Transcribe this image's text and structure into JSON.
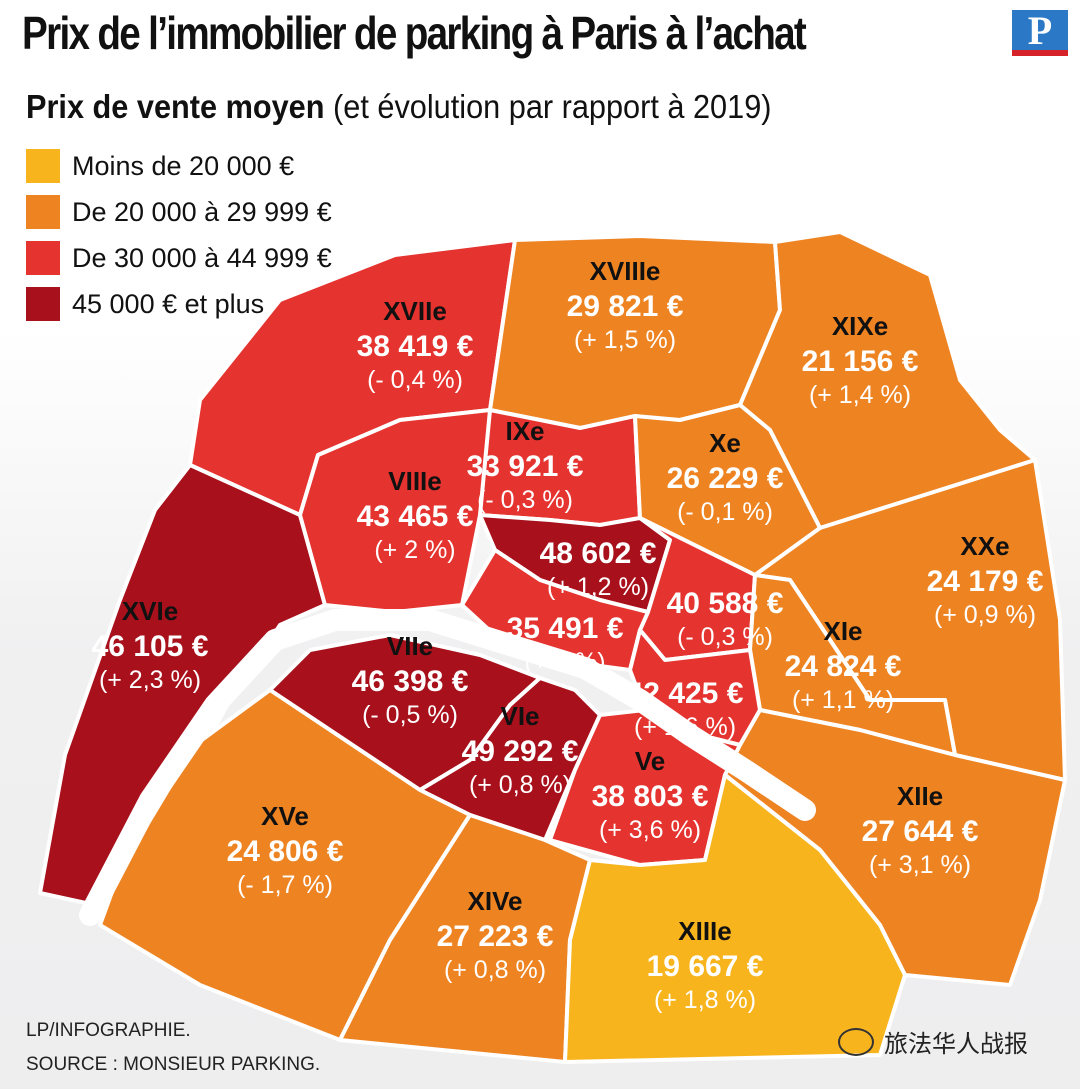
{
  "header": {
    "title": "Prix de l’immobilier de parking à Paris à l’achat",
    "brand_letter": "P",
    "subtitle_bold": "Prix de vente moyen",
    "subtitle_rest": " (et évolution par rapport à 2019)"
  },
  "legend": [
    {
      "label": "Moins de 20 000 €",
      "color": "#f7b41d"
    },
    {
      "label": "De 20 000 à 29 999 €",
      "color": "#ee8322"
    },
    {
      "label": "De 30 000  à 44 999 €",
      "color": "#e5332f"
    },
    {
      "label": "45 000 € et plus",
      "color": "#a8101b"
    }
  ],
  "districts": {
    "xvii": {
      "name": "XVIIe",
      "price": "38 419 €",
      "evo": "(- 0,4 %)",
      "color": "#e5332f"
    },
    "xviii": {
      "name": "XVIIIe",
      "price": "29 821 €",
      "evo": "(+ 1,5 %)",
      "color": "#ee8322"
    },
    "xix": {
      "name": "XIXe",
      "price": "21 156 €",
      "evo": "(+ 1,4 %)",
      "color": "#ee8322"
    },
    "xvi": {
      "name": "XVIe",
      "price": "46 105 €",
      "evo": "(+ 2,3 %)",
      "color": "#a8101b"
    },
    "viii": {
      "name": "VIIIe",
      "price": "43 465 €",
      "evo": "(+ 2 %)",
      "color": "#e5332f"
    },
    "ix": {
      "name": "IXe",
      "price": "33 921 €",
      "evo": "(- 0,3 %)",
      "color": "#e5332f"
    },
    "x": {
      "name": "Xe",
      "price": "26 229 €",
      "evo": "(- 0,1 %)",
      "color": "#ee8322"
    },
    "xx": {
      "name": "XXe",
      "price": "24 179 €",
      "evo": "(+ 0,9 %)",
      "color": "#ee8322"
    },
    "center": {
      "price": "48 602 €",
      "evo": "(+ 1,2 %)",
      "color": "#a8101b"
    },
    "iii": {
      "price": "40 588 €",
      "evo": "(- 0,3 %)",
      "color": "#e5332f"
    },
    "i": {
      "price": "35 491 €",
      "evo": "(+ 4 %)",
      "color": "#e5332f"
    },
    "xi": {
      "name": "XIe",
      "price": "24 824 €",
      "evo": "(+ 1,1 %)",
      "color": "#ee8322"
    },
    "vii": {
      "name": "VIIe",
      "price": "46 398 €",
      "evo": "(- 0,5 %)",
      "color": "#a8101b"
    },
    "iv": {
      "price": "42 425 €",
      "evo": "(+ 1,6 %)",
      "color": "#e5332f"
    },
    "vi": {
      "name": "VIe",
      "price": "49 292 €",
      "evo": "(+ 0,8 %)",
      "color": "#a8101b"
    },
    "v": {
      "name": "Ve",
      "price": "38 803 €",
      "evo": "(+ 3,6 %)",
      "color": "#e5332f"
    },
    "xii": {
      "name": "XIIe",
      "price": "27 644 €",
      "evo": "(+ 3,1 %)",
      "color": "#ee8322"
    },
    "xv": {
      "name": "XVe",
      "price": "24 806 €",
      "evo": "(- 1,7 %)",
      "color": "#ee8322"
    },
    "xiv": {
      "name": "XIVe",
      "price": "27 223 €",
      "evo": "(+ 0,8 %)",
      "color": "#ee8322"
    },
    "xiii": {
      "name": "XIIIe",
      "price": "19 667 €",
      "evo": "(+ 1,8 %)",
      "color": "#f7b41d"
    }
  },
  "river_color": "#ffffff",
  "credits": {
    "line1": "LP/INFOGRAPHIE.",
    "line2": "SOURCE : MONSIEUR PARKING."
  },
  "watermark": {
    "text": "旅法华人战报",
    "icon": "wechat-icon"
  }
}
